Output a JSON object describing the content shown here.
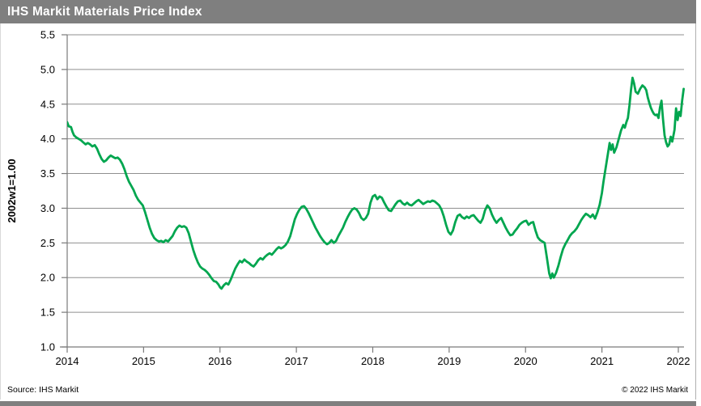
{
  "title_bar": {
    "title": "IHS Markit Materials Price Index",
    "background": "#7f7f7f",
    "text_color": "#ffffff"
  },
  "footer": {
    "source": "Source:  IHS Markit",
    "copyright": "© 2022  IHS Markit"
  },
  "colors": {
    "line": "#00a64f",
    "grid": "#8f8f8f",
    "axis": "#7a7a7a",
    "text": "#000000"
  },
  "chart_data": {
    "type": "line",
    "title": "IHS Markit Materials Price Index",
    "xlabel": "",
    "ylabel": "2002w1=1.00",
    "ylim": [
      1.0,
      5.5
    ],
    "xlim": [
      2014,
      2022.25
    ],
    "grid": true,
    "legend": false,
    "y_ticks": [
      1.0,
      1.5,
      2.0,
      2.5,
      3.0,
      3.5,
      4.0,
      4.5,
      5.0,
      5.5
    ],
    "y_tick_labels": [
      "1.0",
      "1.5",
      "2.0",
      "2.5",
      "3.0",
      "3.5",
      "4.0",
      "4.5",
      "5.0",
      "5.5"
    ],
    "x_ticks": [
      2014,
      2015,
      2016,
      2017,
      2018,
      2019,
      2020,
      2021,
      2022
    ],
    "x_tick_labels": [
      "2014",
      "2015",
      "2016",
      "2017",
      "2018",
      "2019",
      "2020",
      "2021",
      "2022"
    ],
    "series": [
      {
        "name": "IHS Markit Materials Price Index (2002w1=1.00)",
        "color": "#00a64f",
        "x": [
          2014.0,
          2014.02,
          2014.05,
          2014.07,
          2014.09,
          2014.12,
          2014.15,
          2014.18,
          2014.21,
          2014.24,
          2014.27,
          2014.3,
          2014.33,
          2014.36,
          2014.39,
          2014.42,
          2014.45,
          2014.48,
          2014.51,
          2014.54,
          2014.57,
          2014.6,
          2014.63,
          2014.66,
          2014.69,
          2014.72,
          2014.75,
          2014.78,
          2014.81,
          2014.84,
          2014.87,
          2014.9,
          2014.93,
          2014.96,
          2014.99,
          2015.02,
          2015.05,
          2015.08,
          2015.11,
          2015.14,
          2015.17,
          2015.2,
          2015.23,
          2015.26,
          2015.29,
          2015.32,
          2015.35,
          2015.38,
          2015.41,
          2015.44,
          2015.47,
          2015.5,
          2015.53,
          2015.56,
          2015.59,
          2015.62,
          2015.65,
          2015.68,
          2015.71,
          2015.74,
          2015.77,
          2015.8,
          2015.83,
          2015.86,
          2015.89,
          2015.92,
          2015.95,
          2015.98,
          2016.0,
          2016.02,
          2016.05,
          2016.08,
          2016.11,
          2016.14,
          2016.17,
          2016.2,
          2016.23,
          2016.26,
          2016.29,
          2016.32,
          2016.35,
          2016.38,
          2016.41,
          2016.44,
          2016.47,
          2016.5,
          2016.53,
          2016.56,
          2016.59,
          2016.62,
          2016.65,
          2016.68,
          2016.71,
          2016.74,
          2016.77,
          2016.8,
          2016.83,
          2016.86,
          2016.89,
          2016.92,
          2016.95,
          2016.98,
          2017.01,
          2017.04,
          2017.07,
          2017.1,
          2017.13,
          2017.16,
          2017.19,
          2017.22,
          2017.25,
          2017.28,
          2017.31,
          2017.34,
          2017.37,
          2017.4,
          2017.43,
          2017.46,
          2017.49,
          2017.52,
          2017.55,
          2017.58,
          2017.61,
          2017.64,
          2017.67,
          2017.7,
          2017.73,
          2017.76,
          2017.79,
          2017.82,
          2017.85,
          2017.88,
          2017.91,
          2017.94,
          2017.97,
          2018.0,
          2018.03,
          2018.06,
          2018.09,
          2018.12,
          2018.15,
          2018.18,
          2018.21,
          2018.24,
          2018.27,
          2018.3,
          2018.33,
          2018.36,
          2018.39,
          2018.42,
          2018.45,
          2018.48,
          2018.51,
          2018.54,
          2018.57,
          2018.6,
          2018.63,
          2018.66,
          2018.69,
          2018.72,
          2018.75,
          2018.78,
          2018.81,
          2018.84,
          2018.87,
          2018.9,
          2018.93,
          2018.96,
          2018.99,
          2019.02,
          2019.05,
          2019.08,
          2019.11,
          2019.14,
          2019.17,
          2019.2,
          2019.23,
          2019.26,
          2019.29,
          2019.32,
          2019.35,
          2019.38,
          2019.41,
          2019.44,
          2019.47,
          2019.5,
          2019.53,
          2019.56,
          2019.59,
          2019.62,
          2019.65,
          2019.68,
          2019.71,
          2019.74,
          2019.77,
          2019.8,
          2019.83,
          2019.86,
          2019.89,
          2019.92,
          2019.95,
          2019.98,
          2020.01,
          2020.04,
          2020.07,
          2020.1,
          2020.13,
          2020.16,
          2020.19,
          2020.22,
          2020.25,
          2020.28,
          2020.31,
          2020.33,
          2020.35,
          2020.37,
          2020.4,
          2020.43,
          2020.46,
          2020.49,
          2020.52,
          2020.55,
          2020.58,
          2020.61,
          2020.64,
          2020.67,
          2020.7,
          2020.73,
          2020.76,
          2020.79,
          2020.82,
          2020.85,
          2020.88,
          2020.91,
          2020.94,
          2020.97,
          2021.0,
          2021.02,
          2021.04,
          2021.06,
          2021.08,
          2021.1,
          2021.12,
          2021.14,
          2021.16,
          2021.19,
          2021.22,
          2021.25,
          2021.28,
          2021.3,
          2021.32,
          2021.34,
          2021.36,
          2021.38,
          2021.4,
          2021.42,
          2021.44,
          2021.47,
          2021.5,
          2021.53,
          2021.56,
          2021.58,
          2021.6,
          2021.62,
          2021.64,
          2021.66,
          2021.68,
          2021.7,
          2021.72,
          2021.74,
          2021.76,
          2021.78,
          2021.8,
          2021.82,
          2021.84,
          2021.86,
          2021.88,
          2021.9,
          2021.92,
          2021.95,
          2021.97,
          2021.99,
          2022.01,
          2022.03,
          2022.05,
          2022.07
        ],
        "values": [
          4.24,
          4.18,
          4.17,
          4.1,
          4.05,
          4.02,
          4.0,
          3.98,
          3.95,
          3.92,
          3.94,
          3.92,
          3.89,
          3.91,
          3.86,
          3.78,
          3.71,
          3.67,
          3.69,
          3.73,
          3.76,
          3.74,
          3.72,
          3.73,
          3.7,
          3.64,
          3.56,
          3.46,
          3.38,
          3.32,
          3.26,
          3.18,
          3.12,
          3.08,
          3.04,
          2.94,
          2.83,
          2.72,
          2.63,
          2.57,
          2.54,
          2.52,
          2.53,
          2.51,
          2.54,
          2.52,
          2.56,
          2.6,
          2.67,
          2.72,
          2.75,
          2.73,
          2.74,
          2.72,
          2.64,
          2.52,
          2.4,
          2.3,
          2.22,
          2.16,
          2.13,
          2.11,
          2.08,
          2.04,
          1.99,
          1.95,
          1.94,
          1.9,
          1.86,
          1.84,
          1.89,
          1.92,
          1.9,
          1.97,
          2.05,
          2.13,
          2.19,
          2.24,
          2.22,
          2.26,
          2.23,
          2.21,
          2.18,
          2.16,
          2.2,
          2.25,
          2.28,
          2.26,
          2.3,
          2.33,
          2.35,
          2.33,
          2.37,
          2.41,
          2.44,
          2.42,
          2.44,
          2.47,
          2.52,
          2.6,
          2.72,
          2.84,
          2.92,
          2.98,
          3.02,
          3.03,
          2.99,
          2.93,
          2.86,
          2.79,
          2.72,
          2.66,
          2.6,
          2.55,
          2.51,
          2.48,
          2.5,
          2.54,
          2.5,
          2.53,
          2.6,
          2.66,
          2.72,
          2.8,
          2.87,
          2.93,
          2.98,
          3.0,
          2.98,
          2.93,
          2.86,
          2.83,
          2.86,
          2.92,
          3.08,
          3.17,
          3.19,
          3.13,
          3.17,
          3.15,
          3.08,
          3.02,
          2.97,
          2.96,
          3.01,
          3.06,
          3.1,
          3.11,
          3.07,
          3.05,
          3.08,
          3.05,
          3.04,
          3.07,
          3.1,
          3.12,
          3.09,
          3.06,
          3.08,
          3.1,
          3.09,
          3.11,
          3.1,
          3.07,
          3.04,
          2.98,
          2.88,
          2.76,
          2.66,
          2.62,
          2.68,
          2.8,
          2.89,
          2.91,
          2.87,
          2.85,
          2.88,
          2.86,
          2.89,
          2.9,
          2.86,
          2.82,
          2.79,
          2.85,
          2.97,
          3.04,
          3.0,
          2.91,
          2.84,
          2.79,
          2.83,
          2.86,
          2.79,
          2.72,
          2.66,
          2.61,
          2.62,
          2.67,
          2.71,
          2.76,
          2.79,
          2.81,
          2.82,
          2.76,
          2.79,
          2.8,
          2.68,
          2.58,
          2.54,
          2.52,
          2.5,
          2.28,
          2.06,
          1.99,
          2.06,
          2.0,
          2.07,
          2.17,
          2.3,
          2.41,
          2.48,
          2.54,
          2.6,
          2.64,
          2.67,
          2.71,
          2.77,
          2.83,
          2.88,
          2.92,
          2.9,
          2.87,
          2.91,
          2.85,
          2.94,
          3.05,
          3.22,
          3.38,
          3.52,
          3.66,
          3.8,
          3.94,
          3.84,
          3.92,
          3.8,
          3.88,
          4.0,
          4.12,
          4.2,
          4.16,
          4.24,
          4.3,
          4.48,
          4.7,
          4.88,
          4.8,
          4.68,
          4.65,
          4.72,
          4.77,
          4.74,
          4.7,
          4.6,
          4.52,
          4.45,
          4.4,
          4.36,
          4.34,
          4.35,
          4.3,
          4.45,
          4.55,
          4.28,
          4.05,
          3.95,
          3.89,
          3.92,
          4.03,
          3.96,
          4.13,
          4.44,
          4.27,
          4.39,
          4.33,
          4.55,
          4.72
        ]
      }
    ]
  }
}
